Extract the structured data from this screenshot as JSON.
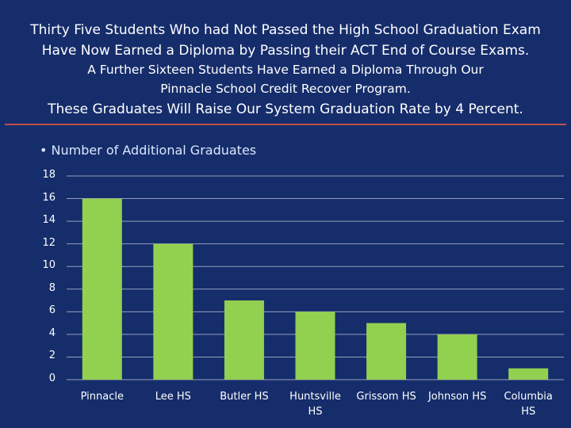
{
  "header": {
    "line1": "Thirty Five Students Who had Not Passed the High School Graduation Exam",
    "line2": "Have Now Earned a Diploma by Passing their ACT End of Course Exams.",
    "line3": "A Further Sixteen Students Have Earned a Diploma Through Our",
    "line4": "Pinnacle School Credit Recover Program.",
    "line5": "These Graduates Will Raise Our System Graduation Rate by 4 Percent."
  },
  "colors": {
    "background": "#162d6b",
    "bar": "#92d050",
    "divider": "#c0504d",
    "gridline": "#ffffff"
  },
  "chart_data": {
    "type": "bar",
    "legend": "• Number of Additional Graduates",
    "categories": [
      "Pinnacle",
      "Lee HS",
      "Butler HS",
      "Huntsville HS",
      "Grissom HS",
      "Johnson HS",
      "Columbia HS"
    ],
    "category_lines": [
      [
        "Pinnacle"
      ],
      [
        "Lee HS"
      ],
      [
        "Butler HS"
      ],
      [
        "Huntsville",
        "HS"
      ],
      [
        "Grissom HS"
      ],
      [
        "Johnson HS"
      ],
      [
        "Columbia",
        "HS"
      ]
    ],
    "series": [
      {
        "name": "Number of Additional Graduates",
        "values": [
          16,
          12,
          7,
          6,
          5,
          4,
          1
        ]
      }
    ],
    "ylim": [
      0,
      18
    ],
    "yticks": [
      "0",
      "2",
      "4",
      "6",
      "8",
      "10",
      "12",
      "14",
      "16",
      "18"
    ],
    "grid": true,
    "legend_position": "top-left"
  }
}
